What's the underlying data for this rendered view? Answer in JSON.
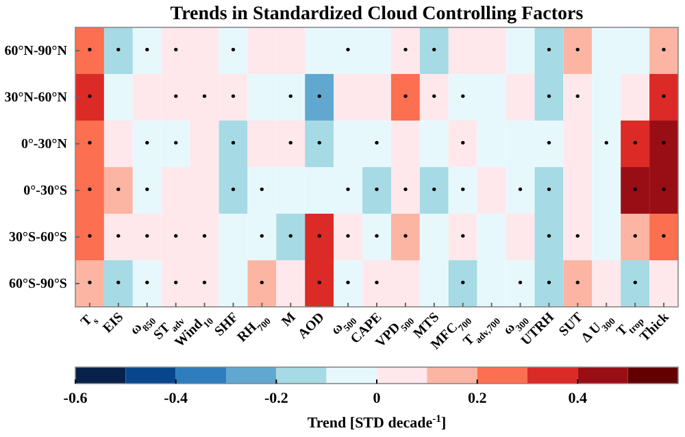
{
  "chart_data": {
    "type": "heatmap",
    "title": "Trends in Standardized Cloud Controlling Factors",
    "clabel": "Trend [STD decade$^{-1}$]",
    "categories": [
      "T$_{s}$",
      "EIS",
      "ω$_{850}$",
      "ST$_{adv}$",
      "Wind$_{10}$",
      "SHF",
      "RH$_{700}$",
      "M",
      "AOD",
      "ω$_{500}$",
      "CAPE",
      "VPD$_{500}$",
      "MTS",
      "MFC$_{700}$",
      "T$_{adv,700}$",
      "ω$_{300}$",
      "UTRH",
      "SUT",
      "Δ U$_{300}$",
      "T$_{trop}$",
      "Thick"
    ],
    "y_categories": [
      "60°N-90°N",
      "30°N-60°N",
      "0°-30°N",
      "0°-30°S",
      "30°S-60°S",
      "60°S-90°S"
    ],
    "cells": [
      [
        0.25,
        -0.15,
        -0.05,
        0.05,
        0.05,
        -0.05,
        0.05,
        0.05,
        -0.05,
        -0.05,
        -0.05,
        0.05,
        -0.15,
        0.05,
        0.05,
        -0.05,
        -0.15,
        0.15,
        -0.05,
        -0.05,
        0.15
      ],
      [
        0.35,
        -0.05,
        0.05,
        0.05,
        0.05,
        0.05,
        -0.05,
        -0.05,
        -0.25,
        0.05,
        0.05,
        0.25,
        0.05,
        -0.05,
        -0.05,
        0.05,
        -0.15,
        0.05,
        -0.05,
        0.05,
        0.35
      ],
      [
        0.25,
        0.05,
        -0.05,
        -0.05,
        0.05,
        -0.15,
        0.05,
        0.05,
        -0.15,
        -0.05,
        -0.05,
        0.05,
        -0.05,
        0.05,
        -0.05,
        -0.05,
        -0.05,
        0.05,
        -0.05,
        0.35,
        0.45
      ],
      [
        0.25,
        0.15,
        -0.05,
        0.05,
        0.05,
        -0.15,
        -0.05,
        -0.05,
        -0.05,
        -0.05,
        -0.15,
        0.05,
        -0.15,
        -0.05,
        0.05,
        -0.05,
        -0.15,
        0.05,
        -0.05,
        0.45,
        0.45
      ],
      [
        0.25,
        0.05,
        0.05,
        0.05,
        0.05,
        -0.05,
        -0.05,
        -0.15,
        0.35,
        0.05,
        -0.05,
        0.15,
        -0.05,
        0.05,
        -0.05,
        0.05,
        -0.15,
        0.05,
        -0.05,
        0.15,
        0.25
      ],
      [
        0.15,
        -0.15,
        -0.05,
        0.05,
        0.05,
        -0.05,
        0.15,
        0.05,
        0.35,
        -0.05,
        0.05,
        0.05,
        -0.05,
        -0.15,
        -0.05,
        -0.05,
        -0.15,
        0.15,
        0.05,
        -0.15,
        0.05
      ]
    ],
    "cell_labels": [
      [
        "•",
        "•",
        "•",
        "•",
        null,
        "•",
        null,
        null,
        null,
        "•",
        null,
        "•",
        "•",
        null,
        null,
        null,
        "•",
        "•",
        null,
        null,
        "•"
      ],
      [
        "•",
        null,
        null,
        "•",
        "•",
        "•",
        null,
        "•",
        "•",
        null,
        null,
        "•",
        "•",
        "•",
        null,
        null,
        "•",
        "•",
        null,
        null,
        "•"
      ],
      [
        "•",
        null,
        "•",
        "•",
        null,
        "•",
        null,
        "•",
        "•",
        null,
        "•",
        null,
        null,
        "•",
        null,
        null,
        "•",
        null,
        "•",
        "•",
        "•"
      ],
      [
        "•",
        "•",
        "•",
        null,
        null,
        "•",
        "•",
        null,
        null,
        "•",
        "•",
        "•",
        "•",
        "•",
        null,
        "•",
        "•",
        null,
        null,
        "•",
        "•"
      ],
      [
        "•",
        "•",
        "•",
        "•",
        "•",
        null,
        "•",
        "•",
        "•",
        "•",
        "•",
        "•",
        null,
        "•",
        null,
        null,
        "•",
        "•",
        null,
        "•",
        "•"
      ],
      [
        "•",
        "•",
        "•",
        "•",
        "•",
        null,
        "•",
        null,
        "•",
        "•",
        "•",
        null,
        null,
        "•",
        null,
        "•",
        "•",
        "•",
        null,
        "•",
        null
      ]
    ],
    "clim": [
      -0.6,
      0.6
    ],
    "cticks": [
      -0.6,
      -0.4,
      -0.2,
      0,
      0.2,
      0.4
    ]
  }
}
